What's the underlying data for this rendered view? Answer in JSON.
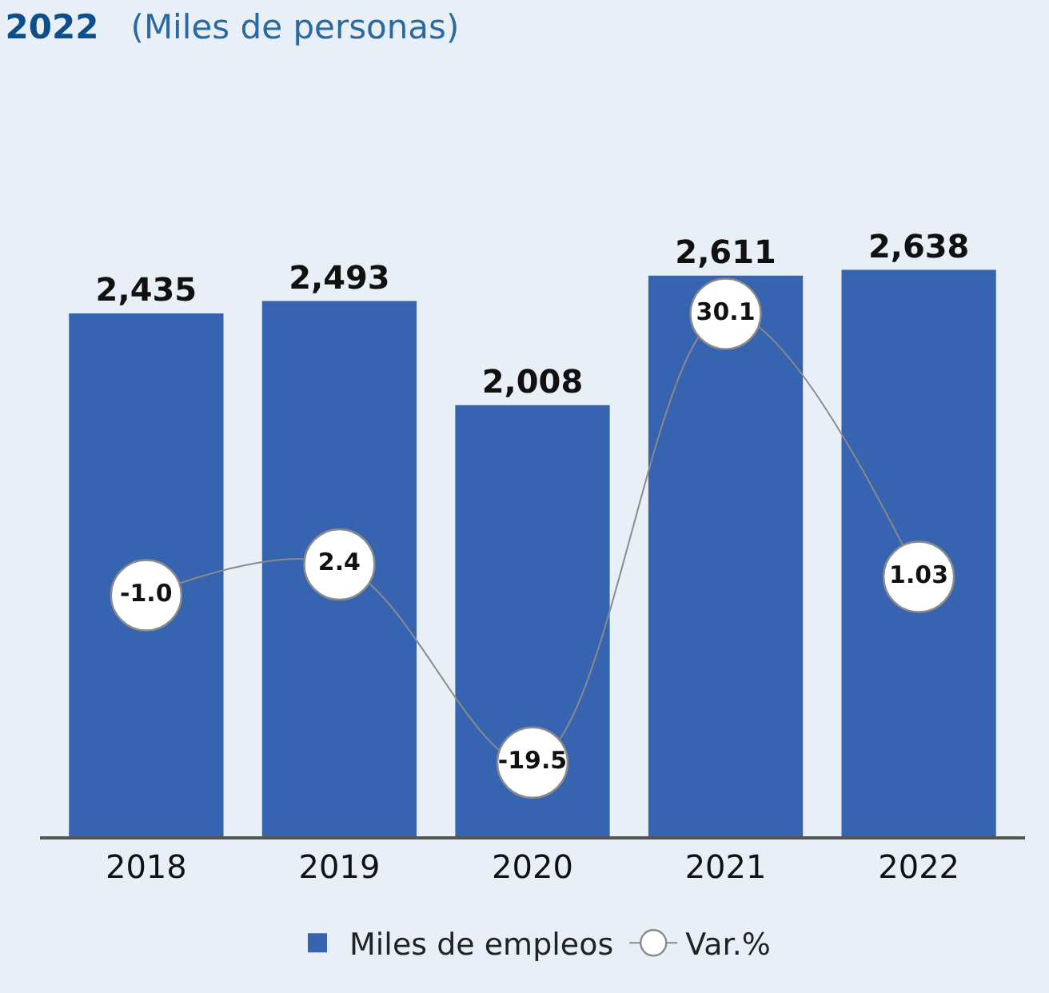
{
  "chart_data": {
    "type": "bar",
    "title": "2022",
    "subtitle": "(Miles de personas)",
    "categories": [
      "2018",
      "2019",
      "2020",
      "2021",
      "2022"
    ],
    "series": [
      {
        "name": "Miles de empleos",
        "color": "#3764b0",
        "values": [
          2435,
          2493,
          2008,
          2611,
          2638
        ],
        "value_labels": [
          "2,435",
          "2,493",
          "2,008",
          "2,611",
          "2,638"
        ]
      },
      {
        "name": "Var.%",
        "type": "line",
        "axis": "y2",
        "color": "#8a8a8a",
        "marker": "circle",
        "values": [
          -1.0,
          2.4,
          -19.5,
          30.1,
          1.03
        ],
        "value_labels": [
          "-1.0",
          "2.4",
          "-19.5",
          "30.1",
          "1.03"
        ]
      }
    ],
    "legend": "bottom"
  }
}
